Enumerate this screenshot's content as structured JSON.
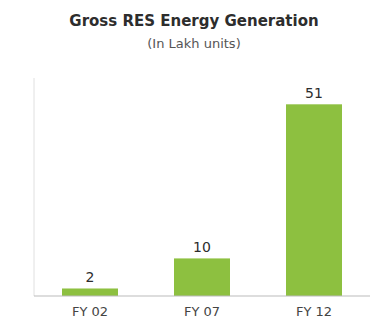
{
  "chart_data": {
    "type": "bar",
    "title": "Gross RES Energy Generation",
    "subtitle": "(In Lakh units)",
    "categories": [
      "FY 02",
      "FY 07",
      "FY 12"
    ],
    "values": [
      2,
      10,
      51
    ],
    "color": "#8DC040",
    "ylim": [
      0,
      58
    ],
    "grid": false,
    "data_labels": true,
    "tick_labels": "x"
  }
}
